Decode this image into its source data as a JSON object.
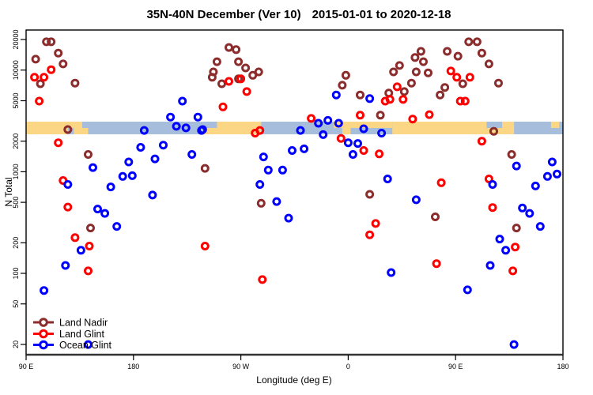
{
  "title": {
    "part1": "35N-40N December (Ver 10)",
    "part2": "2015-01-01 to 2020-12-18"
  },
  "axes": {
    "x": {
      "label": "Longitude (deg E)",
      "ticks": [
        {
          "lon": 90,
          "label": "90 E"
        },
        {
          "lon": 180,
          "label": "180"
        },
        {
          "lon": 270,
          "label": "90 W"
        },
        {
          "lon": 360,
          "label": "0"
        },
        {
          "lon": 450,
          "label": "90 E"
        },
        {
          "lon": 540,
          "label": "180"
        }
      ]
    },
    "y": {
      "label": "N Total",
      "scale": "log",
      "ticks": [
        {
          "value": 20000,
          "label": "20000"
        },
        {
          "value": 10000,
          "label": "10000"
        },
        {
          "value": 5000,
          "label": "5000"
        },
        {
          "value": 2000,
          "label": "2000"
        },
        {
          "value": 1000,
          "label": "1000"
        },
        {
          "value": 500,
          "label": "500"
        },
        {
          "value": 200,
          "label": "200"
        },
        {
          "value": 100,
          "label": "100"
        },
        {
          "value": 50,
          "label": "50"
        },
        {
          "value": 20,
          "label": "20"
        }
      ]
    }
  },
  "legend": {
    "items": [
      {
        "label": "Land Nadir",
        "color": "#8C2D2D"
      },
      {
        "label": "Land Glint",
        "color": "#FF0000"
      },
      {
        "label": "Ocean Glint",
        "color": "#0000FF"
      }
    ]
  },
  "map_band": {
    "description": "35N-40N latitude land/ocean strip drawn across plot",
    "land_color": "#FBD684",
    "ocean_color": "#A6BEDC",
    "n_value_range": [
      2320,
      3400
    ],
    "land_segments": [
      {
        "lon": [
          90,
          125
        ],
        "part": "full"
      },
      {
        "lon": [
          125,
          137
        ],
        "part": "top"
      },
      {
        "lon": [
          130,
          142
        ],
        "part": "bottom"
      },
      {
        "lon": [
          239,
          287
        ],
        "part": "full"
      },
      {
        "lon": [
          348,
          397
        ],
        "part": "top"
      },
      {
        "lon": [
          355,
          362
        ],
        "part": "bottom"
      },
      {
        "lon": [
          397,
          476
        ],
        "part": "full"
      },
      {
        "lon": [
          476,
          489
        ],
        "part": "bottom"
      },
      {
        "lon": [
          489,
          499
        ],
        "part": "full"
      },
      {
        "lon": [
          530,
          537
        ],
        "part": "top"
      }
    ],
    "ocean_overlays": [
      {
        "lon": [
          239,
          250
        ],
        "part": "top"
      }
    ]
  },
  "chart_data": {
    "type": "scatter",
    "title": "35N-40N December (Ver 10)   2015-01-01 to 2020-12-18",
    "xlabel": "Longitude (deg E)",
    "ylabel": "N Total",
    "x_axis": {
      "unit": "deg E",
      "range": [
        90,
        540
      ],
      "wraps_longitude": true
    },
    "y_axis": {
      "scale": "log",
      "range": [
        15,
        26000
      ]
    },
    "grid": false,
    "legend_position": "bottom-left",
    "marker": "open-circle",
    "series": [
      {
        "name": "Land Nadir",
        "color": "#8C2D2D",
        "points": [
          [
            107,
            19000
          ],
          [
            111,
            19000
          ],
          [
            117,
            14700
          ],
          [
            98,
            12800
          ],
          [
            121,
            11500
          ],
          [
            102,
            7350
          ],
          [
            131,
            7450
          ],
          [
            125,
            2600
          ],
          [
            142,
            1480
          ],
          [
            240,
            1080
          ],
          [
            260,
            16700
          ],
          [
            266,
            15900
          ],
          [
            250,
            12100
          ],
          [
            268,
            12100
          ],
          [
            247,
            9600
          ],
          [
            246,
            8500
          ],
          [
            254,
            7350
          ],
          [
            274,
            10500
          ],
          [
            280,
            8900
          ],
          [
            285,
            9600
          ],
          [
            268,
            8200
          ],
          [
            358,
            8900
          ],
          [
            355,
            7100
          ],
          [
            370,
            5700
          ],
          [
            387,
            3600
          ],
          [
            287,
            490
          ],
          [
            378,
            600
          ],
          [
            144,
            280
          ],
          [
            433,
            360
          ],
          [
            501,
            280
          ],
          [
            461,
            19000
          ],
          [
            468,
            19000
          ],
          [
            421,
            15300
          ],
          [
            443,
            15300
          ],
          [
            472,
            14700
          ],
          [
            452,
            13700
          ],
          [
            416,
            13300
          ],
          [
            423,
            12100
          ],
          [
            478,
            11500
          ],
          [
            403,
            11100
          ],
          [
            398,
            9600
          ],
          [
            417,
            9600
          ],
          [
            427,
            9400
          ],
          [
            486,
            7450
          ],
          [
            394,
            5950
          ],
          [
            407,
            6150
          ],
          [
            437,
            5700
          ],
          [
            413,
            7450
          ],
          [
            456,
            7350
          ],
          [
            441,
            6750
          ],
          [
            482,
            2500
          ],
          [
            497,
            1480
          ]
        ]
      },
      {
        "name": "Land Glint",
        "color": "#FF0000",
        "points": [
          [
            111,
            10100
          ],
          [
            97,
            8500
          ],
          [
            105,
            8500
          ],
          [
            101,
            4950
          ],
          [
            117,
            1930
          ],
          [
            260,
            7750
          ],
          [
            270,
            8200
          ],
          [
            275,
            6150
          ],
          [
            255,
            4350
          ],
          [
            282,
            2400
          ],
          [
            286,
            2550
          ],
          [
            329,
            3350
          ],
          [
            370,
            3600
          ],
          [
            354,
            2130
          ],
          [
            373,
            1620
          ],
          [
            386,
            1500
          ],
          [
            401,
            6850
          ],
          [
            391,
            4950
          ],
          [
            395,
            5150
          ],
          [
            406,
            5150
          ],
          [
            446,
            9800
          ],
          [
            451,
            8500
          ],
          [
            462,
            8500
          ],
          [
            454,
            4950
          ],
          [
            458,
            4950
          ],
          [
            414,
            3300
          ],
          [
            428,
            3650
          ],
          [
            472,
            2000
          ],
          [
            121,
            820
          ],
          [
            125,
            450
          ],
          [
            131,
            225
          ],
          [
            143,
            186
          ],
          [
            142,
            106
          ],
          [
            240,
            186
          ],
          [
            383,
            310
          ],
          [
            378,
            240
          ],
          [
            288,
            87
          ],
          [
            438,
            780
          ],
          [
            481,
            445
          ],
          [
            478,
            850
          ],
          [
            500,
            182
          ],
          [
            434,
            125
          ],
          [
            498,
            106
          ]
        ]
      },
      {
        "name": "Ocean Glint",
        "color": "#0000FF",
        "points": [
          [
            221,
            4950
          ],
          [
            211,
            3450
          ],
          [
            216,
            2800
          ],
          [
            234,
            3450
          ],
          [
            224,
            2700
          ],
          [
            238,
            2600
          ],
          [
            189,
            2550
          ],
          [
            186,
            1740
          ],
          [
            205,
            1830
          ],
          [
            176,
            1250
          ],
          [
            198,
            1340
          ],
          [
            229,
            1480
          ],
          [
            146,
            1100
          ],
          [
            350,
            5700
          ],
          [
            378,
            5250
          ],
          [
            237,
            2550
          ],
          [
            320,
            2550
          ],
          [
            335,
            3000
          ],
          [
            343,
            3200
          ],
          [
            352,
            3000
          ],
          [
            373,
            2650
          ],
          [
            339,
            2320
          ],
          [
            360,
            1930
          ],
          [
            364,
            1480
          ],
          [
            368,
            1900
          ],
          [
            313,
            1620
          ],
          [
            323,
            1680
          ],
          [
            289,
            1400
          ],
          [
            293,
            1040
          ],
          [
            305,
            1040
          ],
          [
            388,
            2400
          ],
          [
            501,
            1140
          ],
          [
            531,
            1250
          ],
          [
            125,
            750
          ],
          [
            171,
            900
          ],
          [
            179,
            915
          ],
          [
            161,
            710
          ],
          [
            196,
            590
          ],
          [
            150,
            430
          ],
          [
            156,
            390
          ],
          [
            166,
            290
          ],
          [
            136,
            169
          ],
          [
            123,
            120
          ],
          [
            105,
            68
          ],
          [
            286,
            750
          ],
          [
            300,
            510
          ],
          [
            310,
            350
          ],
          [
            393,
            850
          ],
          [
            417,
            530
          ],
          [
            481,
            750
          ],
          [
            527,
            900
          ],
          [
            535,
            950
          ],
          [
            517,
            725
          ],
          [
            506,
            440
          ],
          [
            512,
            390
          ],
          [
            521,
            290
          ],
          [
            487,
            218
          ],
          [
            492,
            169
          ],
          [
            479,
            120
          ],
          [
            396,
            102
          ],
          [
            460,
            69
          ],
          [
            142,
            20
          ],
          [
            499,
            20
          ]
        ]
      }
    ]
  }
}
